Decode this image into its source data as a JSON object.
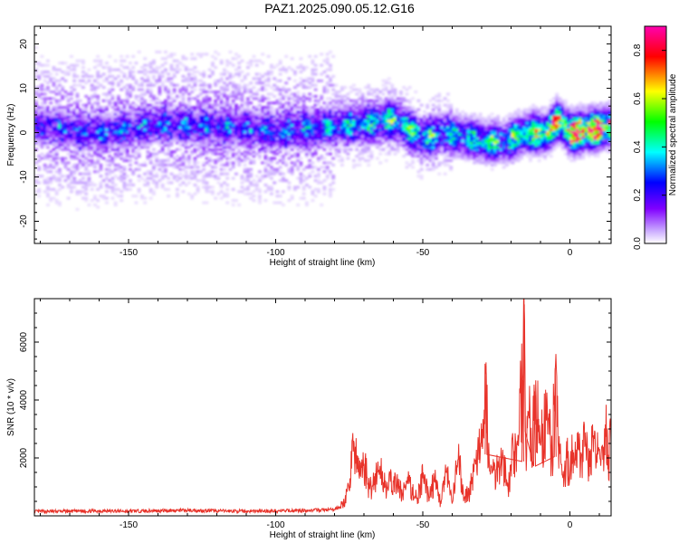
{
  "title": "PAZ1.2025.090.05.12.G16",
  "chart_data": [
    {
      "type": "heatmap",
      "xlabel": "Height of straight line (km)",
      "ylabel": "Frequency (Hz)",
      "xlim": [
        -182,
        14
      ],
      "ylim": [
        -25,
        24
      ],
      "xticks": [
        -150,
        -100,
        -50,
        0
      ],
      "yticks": [
        -20,
        -10,
        0,
        10,
        20
      ],
      "colorbar": {
        "label": "Normalized spectral amplitude",
        "range": [
          0,
          0.9
        ],
        "ticks": [
          "0.0",
          "0.2",
          "0.4",
          "0.6",
          "0.8"
        ],
        "colormap": [
          "#ffffff",
          "#8000ff",
          "#0000ff",
          "#00ffff",
          "#00ff00",
          "#ffff00",
          "#ff0000",
          "#ff00ff"
        ]
      },
      "ridge": {
        "x": [
          -180,
          -160,
          -140,
          -120,
          -100,
          -80,
          -70,
          -60,
          -50,
          -42,
          -35,
          -28,
          -22,
          -15,
          -8,
          -4,
          0,
          5,
          10,
          14
        ],
        "y": [
          1.5,
          0,
          2,
          1.5,
          0.5,
          1.5,
          2,
          3,
          -1,
          0,
          -1,
          -2,
          -2,
          0,
          0,
          3,
          0,
          0.5,
          1,
          1.5
        ],
        "amplitude": [
          0.15,
          0.2,
          0.2,
          0.2,
          0.2,
          0.25,
          0.3,
          0.35,
          0.35,
          0.3,
          0.3,
          0.35,
          0.35,
          0.45,
          0.5,
          0.55,
          0.7,
          0.75,
          0.7,
          0.6
        ]
      }
    },
    {
      "type": "line",
      "xlabel": "Height of straight line (km)",
      "ylabel": "SNR (10 * v/v)",
      "xlim": [
        -182,
        14
      ],
      "ylim": [
        0,
        7500
      ],
      "xticks": [
        -150,
        -100,
        -50,
        0
      ],
      "yticks": [
        2000,
        4000,
        6000
      ],
      "series": [
        {
          "color": "#e8332a",
          "x": [
            -182,
            -170,
            -160,
            -150,
            -140,
            -130,
            -120,
            -110,
            -100,
            -90,
            -85,
            -80,
            -77,
            -75,
            -74,
            -72,
            -70,
            -68,
            -65,
            -62,
            -60,
            -57,
            -55,
            -52,
            -50,
            -48,
            -46,
            -44,
            -42,
            -40,
            -38,
            -36,
            -34,
            -32,
            -30,
            -28.5,
            -28,
            -27,
            -25,
            -23,
            -21,
            -20,
            -18,
            -16,
            -15.5,
            -15,
            -14,
            -13,
            -12,
            -10,
            -8,
            -7,
            -6,
            -5,
            -4,
            -3,
            -2,
            -1,
            0,
            1,
            2,
            3,
            4,
            5,
            6,
            7,
            8,
            9,
            10,
            11,
            12,
            13,
            14
          ],
          "y": [
            150,
            160,
            170,
            160,
            180,
            190,
            170,
            160,
            170,
            190,
            200,
            220,
            400,
            900,
            2700,
            1500,
            1800,
            900,
            1600,
            1000,
            1200,
            800,
            1100,
            600,
            1300,
            700,
            1200,
            500,
            1500,
            400,
            2000,
            600,
            900,
            1800,
            2300,
            5300,
            2800,
            1400,
            1600,
            2100,
            900,
            1800,
            2500,
            4700,
            7300,
            2300,
            3600,
            2000,
            4300,
            2400,
            3300,
            2800,
            1900,
            5100,
            2400,
            1800,
            1200,
            2000,
            1400,
            2300,
            1900,
            2300,
            2100,
            2400,
            2000,
            2300,
            2200,
            1900,
            2300,
            2400,
            3200,
            2100,
            2500
          ]
        }
      ]
    }
  ]
}
